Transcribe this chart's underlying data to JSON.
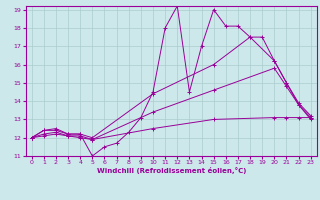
{
  "bg_color": "#cce8ea",
  "grid_color": "#aaccce",
  "line_color": "#990099",
  "xlabel": "Windchill (Refroidissement éolien,°C)",
  "xlim": [
    -0.5,
    23.5
  ],
  "ylim": [
    11,
    19.2
  ],
  "yticks": [
    11,
    12,
    13,
    14,
    15,
    16,
    17,
    18,
    19
  ],
  "xticks": [
    0,
    1,
    2,
    3,
    4,
    5,
    6,
    7,
    8,
    9,
    10,
    11,
    12,
    13,
    14,
    15,
    16,
    17,
    18,
    19,
    20,
    21,
    22,
    23
  ],
  "lines": [
    {
      "x": [
        0,
        1,
        2,
        3,
        4,
        5,
        6,
        7,
        8,
        9,
        10,
        11,
        12,
        13,
        14,
        15,
        16,
        17,
        18,
        19,
        20,
        21,
        22,
        23
      ],
      "y": [
        12,
        12.4,
        12.5,
        12.2,
        12.2,
        11.0,
        11.5,
        11.7,
        12.3,
        13.1,
        14.5,
        18.0,
        19.2,
        14.5,
        17.0,
        19.0,
        18.1,
        18.1,
        17.5,
        17.5,
        16.2,
        15.0,
        13.8,
        13.0
      ]
    },
    {
      "x": [
        0,
        1,
        2,
        3,
        4,
        5,
        10,
        15,
        18,
        20,
        21,
        22,
        23
      ],
      "y": [
        12,
        12.4,
        12.4,
        12.2,
        12.2,
        12.0,
        14.4,
        16.0,
        17.5,
        16.2,
        15.0,
        13.9,
        13.2
      ]
    },
    {
      "x": [
        0,
        1,
        2,
        3,
        4,
        5,
        10,
        15,
        20,
        21,
        22,
        23
      ],
      "y": [
        12,
        12.2,
        12.3,
        12.1,
        12.1,
        11.9,
        13.4,
        14.6,
        15.8,
        14.8,
        13.8,
        13.1
      ]
    },
    {
      "x": [
        0,
        1,
        2,
        3,
        4,
        5,
        10,
        15,
        20,
        21,
        22,
        23
      ],
      "y": [
        12,
        12.1,
        12.2,
        12.1,
        12.0,
        11.9,
        12.5,
        13.0,
        13.1,
        13.1,
        13.1,
        13.1
      ]
    }
  ]
}
